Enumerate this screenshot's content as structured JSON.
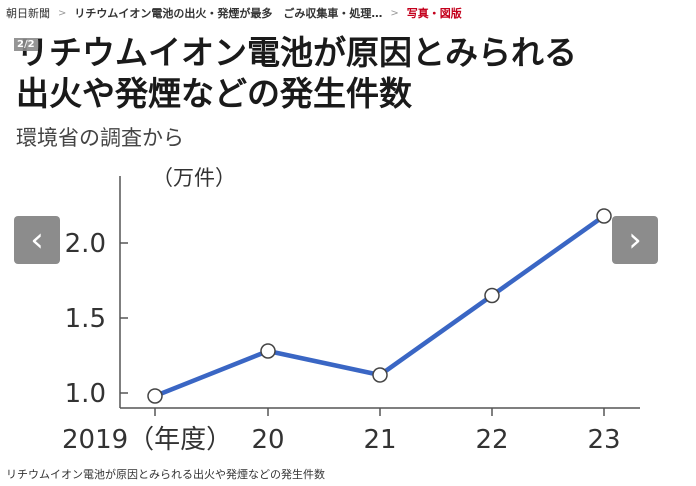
{
  "breadcrumb": {
    "home": "朝日新聞",
    "article": "リチウムイオン電池の出火・発煙が最多　ごみ収集車・処理…",
    "current": "写真・図版"
  },
  "viewer": {
    "counter": "2/2",
    "prev_icon": "chevron-left-icon",
    "next_icon": "chevron-right-icon"
  },
  "figure": {
    "title_line1": "リチウムイオン電池が原因とみられる",
    "title_line2": "出火や発煙などの発生件数",
    "subtitle": "環境省の調査から",
    "unit": "（万件）"
  },
  "chart_data": {
    "type": "line",
    "categories": [
      "2019（年度）",
      "20",
      "21",
      "22",
      "23"
    ],
    "values": [
      0.98,
      1.28,
      1.12,
      1.65,
      2.18
    ],
    "yticks": [
      "1.0",
      "1.5",
      "2.0"
    ],
    "ylim": [
      0.9,
      2.3
    ],
    "line_color": "#3a66c4",
    "grid": false
  },
  "caption": "リチウムイオン電池が原因とみられる出火や発煙などの発生件数"
}
